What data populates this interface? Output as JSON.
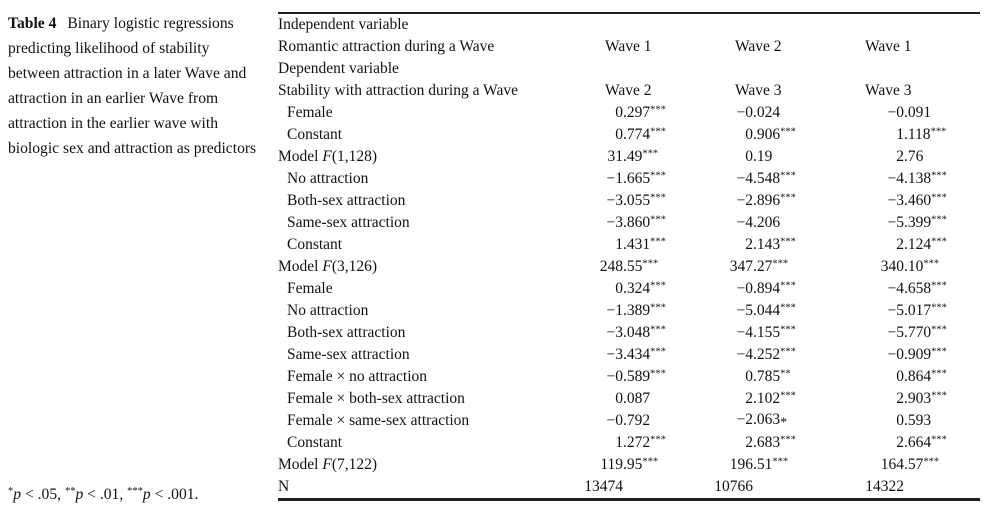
{
  "caption": {
    "label": "Table 4",
    "text": "Binary logistic regressions predicting likelihood of stability between attraction in a later Wave and attraction in an earlier Wave from attraction in the earlier wave with biologic sex and attraction as predictors"
  },
  "footnote": {
    "parts": [
      {
        "stars": "*",
        "p": "p",
        "tail": " < .05, "
      },
      {
        "stars": "**",
        "p": "p",
        "tail": " < .01, "
      },
      {
        "stars": "***",
        "p": "p",
        "tail": " < .001."
      }
    ]
  },
  "table": {
    "rows": [
      {
        "label": {
          "pre": "Independent variable"
        }
      },
      {
        "label": {
          "pre": "Romantic attraction during a Wave"
        },
        "c": [
          "Wave 1",
          "Wave 2",
          "Wave 1"
        ]
      },
      {
        "label": {
          "pre": "Dependent variable"
        }
      },
      {
        "label": {
          "pre": "Stability with attraction during a Wave"
        },
        "c": [
          "Wave 2",
          "Wave 3",
          "Wave 3"
        ]
      },
      {
        "label": {
          "pre": "Female"
        },
        "indent": true,
        "c": [
          {
            "i": "0",
            "f": ".297",
            "s": "***"
          },
          {
            "i": "−0",
            "f": ".024"
          },
          {
            "i": "−0",
            "f": ".091"
          }
        ]
      },
      {
        "label": {
          "pre": "Constant"
        },
        "indent": true,
        "c": [
          {
            "i": "0",
            "f": ".774",
            "s": "***"
          },
          {
            "i": "0",
            "f": ".906",
            "s": "***"
          },
          {
            "i": "1",
            "f": ".118",
            "s": "***"
          }
        ]
      },
      {
        "label": {
          "pre": "Model ",
          "f": "F",
          "post": "(1,128)"
        },
        "c": [
          {
            "i": "31",
            "f": ".49",
            "s": "***"
          },
          {
            "i": "0",
            "f": ".19"
          },
          {
            "i": "2",
            "f": ".76"
          }
        ]
      },
      {
        "label": {
          "pre": "No attraction"
        },
        "indent": true,
        "c": [
          {
            "i": "−1",
            "f": ".665",
            "s": "***"
          },
          {
            "i": "−4",
            "f": ".548",
            "s": "***"
          },
          {
            "i": "−4",
            "f": ".138",
            "s": "***"
          }
        ]
      },
      {
        "label": {
          "pre": "Both-sex attraction"
        },
        "indent": true,
        "c": [
          {
            "i": "−3",
            "f": ".055",
            "s": "***"
          },
          {
            "i": "−2",
            "f": ".896",
            "s": "***"
          },
          {
            "i": "−3",
            "f": ".460",
            "s": "***"
          }
        ]
      },
      {
        "label": {
          "pre": "Same-sex attraction"
        },
        "indent": true,
        "c": [
          {
            "i": "−3",
            "f": ".860",
            "s": "***"
          },
          {
            "i": "−4",
            "f": ".206"
          },
          {
            "i": "−5",
            "f": ".399",
            "s": "***"
          }
        ]
      },
      {
        "label": {
          "pre": "Constant"
        },
        "indent": true,
        "c": [
          {
            "i": "1",
            "f": ".431",
            "s": "***"
          },
          {
            "i": "2",
            "f": ".143",
            "s": "***"
          },
          {
            "i": "2",
            "f": ".124",
            "s": "***"
          }
        ]
      },
      {
        "label": {
          "pre": "Model ",
          "f": "F",
          "post": "(3,126)"
        },
        "c": [
          {
            "i": "248",
            "f": ".55",
            "s": "***"
          },
          {
            "i": "347",
            "f": ".27",
            "s": "***"
          },
          {
            "i": "340",
            "f": ".10",
            "s": "***"
          }
        ]
      },
      {
        "label": {
          "pre": "Female"
        },
        "indent": true,
        "c": [
          {
            "i": "0",
            "f": ".324",
            "s": "***"
          },
          {
            "i": "−0",
            "f": ".894",
            "s": "***"
          },
          {
            "i": "−4",
            "f": ".658",
            "s": "***"
          }
        ]
      },
      {
        "label": {
          "pre": "No attraction"
        },
        "indent": true,
        "c": [
          {
            "i": "−1",
            "f": ".389",
            "s": "***"
          },
          {
            "i": "−5",
            "f": ".044",
            "s": "***"
          },
          {
            "i": "−5",
            "f": ".017",
            "s": "***"
          }
        ]
      },
      {
        "label": {
          "pre": "Both-sex attraction"
        },
        "indent": true,
        "c": [
          {
            "i": "−3",
            "f": ".048",
            "s": "***"
          },
          {
            "i": "−4",
            "f": ".155",
            "s": "***"
          },
          {
            "i": "−5",
            "f": ".770",
            "s": "***"
          }
        ]
      },
      {
        "label": {
          "pre": "Same-sex attraction"
        },
        "indent": true,
        "c": [
          {
            "i": "−3",
            "f": ".434",
            "s": "***"
          },
          {
            "i": "−4",
            "f": ".252",
            "s": "***"
          },
          {
            "i": "−0",
            "f": ".909",
            "s": "***"
          }
        ]
      },
      {
        "label": {
          "pre": "Female × no attraction"
        },
        "indent": true,
        "c": [
          {
            "i": "−0",
            "f": ".589",
            "s": "***"
          },
          {
            "i": "0",
            "f": ".785",
            "s": "**"
          },
          {
            "i": "0",
            "f": ".864",
            "s": "***"
          }
        ]
      },
      {
        "label": {
          "pre": "Female × both-sex attraction"
        },
        "indent": true,
        "c": [
          {
            "i": "0",
            "f": ".087"
          },
          {
            "i": "2",
            "f": ".102",
            "s": "***"
          },
          {
            "i": "2",
            "f": ".903",
            "s": "***"
          }
        ]
      },
      {
        "label": {
          "pre": "Female × same-sex attraction"
        },
        "indent": true,
        "c": [
          {
            "i": "−0",
            "f": ".792"
          },
          {
            "i": "−2",
            "f": ".063",
            "sb": "*"
          },
          {
            "i": "0",
            "f": ".593"
          }
        ]
      },
      {
        "label": {
          "pre": "Constant"
        },
        "indent": true,
        "c": [
          {
            "i": "1",
            "f": ".272",
            "s": "***"
          },
          {
            "i": "2",
            "f": ".683",
            "s": "***"
          },
          {
            "i": "2",
            "f": ".664",
            "s": "***"
          }
        ]
      },
      {
        "label": {
          "pre": "Model ",
          "f": "F",
          "post": "(7,122)"
        },
        "c": [
          {
            "i": "119",
            "f": ".95",
            "s": "***"
          },
          {
            "i": "196",
            "f": ".51",
            "s": "***"
          },
          {
            "i": "164",
            "f": ".57",
            "s": "***"
          }
        ]
      },
      {
        "label": {
          "pre": "N"
        },
        "c": [
          {
            "i": "13474"
          },
          {
            "i": "10766"
          },
          {
            "i": "14322"
          }
        ]
      }
    ]
  }
}
